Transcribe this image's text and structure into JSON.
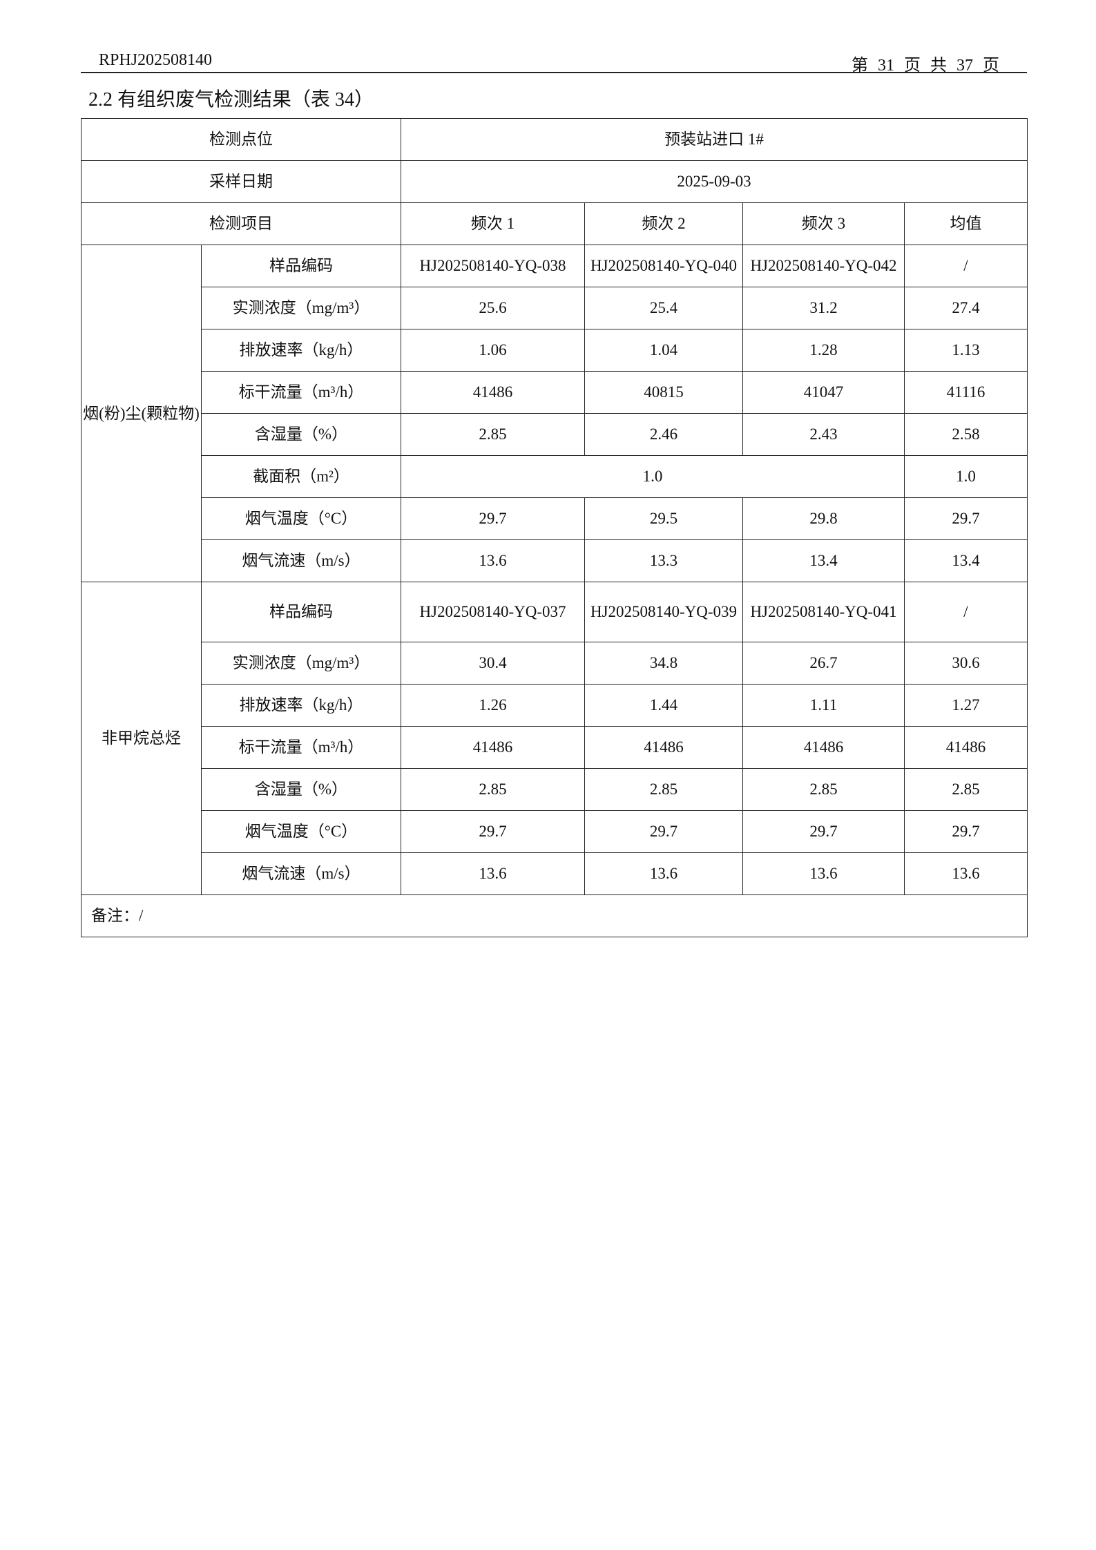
{
  "header": {
    "report_no": "RPHJ202508140",
    "page": "第 31 页 共 37 页"
  },
  "section_title": "2.2 有组织废气检测结果（表 34）",
  "table": {
    "point_label": "检测点位",
    "point_value": "预装站进口 1#",
    "date_label": "采样日期",
    "date_value": "2025-09-03",
    "item_label": "检测项目",
    "columns": [
      "频次 1",
      "频次 2",
      "频次 3",
      "均值"
    ],
    "groups": [
      {
        "name": "烟(粉)尘(颗粒物)",
        "rows": [
          {
            "label": "样品编码",
            "values": [
              "HJ202508140-YQ-038",
              "HJ202508140-YQ-040",
              "HJ202508140-YQ-042",
              "/"
            ]
          },
          {
            "label": "实测浓度（mg/m³）",
            "values": [
              "25.6",
              "25.4",
              "31.2",
              "27.4"
            ]
          },
          {
            "label": "排放速率（kg/h）",
            "values": [
              "1.06",
              "1.04",
              "1.28",
              "1.13"
            ]
          },
          {
            "label": "标干流量（m³/h）",
            "values": [
              "41486",
              "40815",
              "41047",
              "41116"
            ]
          },
          {
            "label": "含湿量（%）",
            "values": [
              "2.85",
              "2.46",
              "2.43",
              "2.58"
            ]
          },
          {
            "label": "截面积（m²）",
            "values": [
              "1.0",
              "1.0"
            ]
          },
          {
            "label": "烟气温度（°C）",
            "values": [
              "29.7",
              "29.5",
              "29.8",
              "29.7"
            ]
          },
          {
            "label": "烟气流速（m/s）",
            "values": [
              "13.6",
              "13.3",
              "13.4",
              "13.4"
            ]
          }
        ]
      },
      {
        "name": "非甲烷总烃",
        "rows": [
          {
            "label": "样品编码",
            "values": [
              "HJ202508140-YQ-037",
              "HJ202508140-YQ-039",
              "HJ202508140-YQ-041",
              "/"
            ]
          },
          {
            "label": "实测浓度（mg/m³）",
            "values": [
              "30.4",
              "34.8",
              "26.7",
              "30.6"
            ]
          },
          {
            "label": "排放速率（kg/h）",
            "values": [
              "1.26",
              "1.44",
              "1.11",
              "1.27"
            ]
          },
          {
            "label": "标干流量（m³/h）",
            "values": [
              "41486",
              "41486",
              "41486",
              "41486"
            ]
          },
          {
            "label": "含湿量（%）",
            "values": [
              "2.85",
              "2.85",
              "2.85",
              "2.85"
            ]
          },
          {
            "label": "烟气温度（°C）",
            "values": [
              "29.7",
              "29.7",
              "29.7",
              "29.7"
            ]
          },
          {
            "label": "烟气流速（m/s）",
            "values": [
              "13.6",
              "13.6",
              "13.6",
              "13.6"
            ]
          }
        ]
      }
    ],
    "note": "备注：/"
  }
}
